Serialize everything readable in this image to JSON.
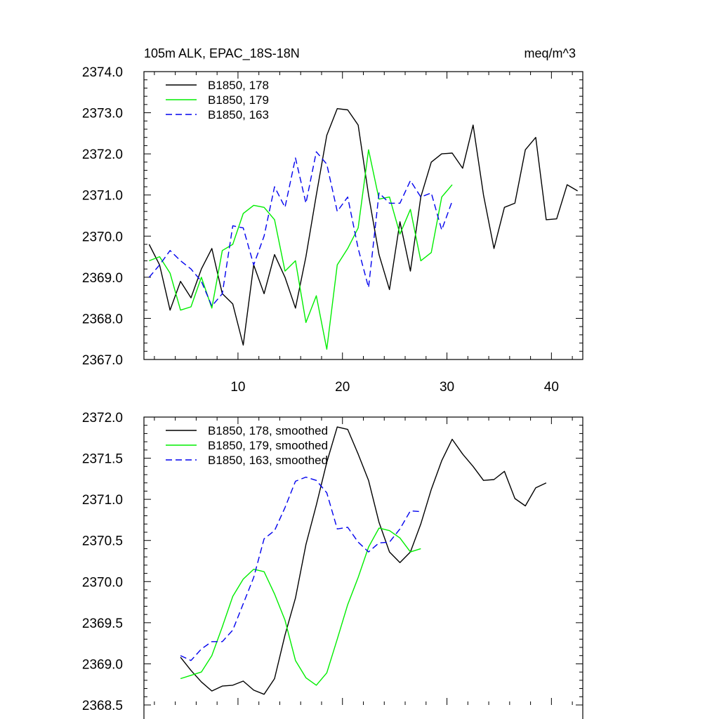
{
  "chart_data": [
    {
      "type": "line",
      "title": "105m ALK, EPAC_18S-18N",
      "units": "meq/m^3",
      "xlim": [
        1,
        43
      ],
      "ylim": [
        2367.0,
        2374.0
      ],
      "xticks": [
        10,
        20,
        30,
        40
      ],
      "xtick_labels": [
        "10",
        "20",
        "30",
        "40"
      ],
      "yticks": [
        2367.0,
        2368.0,
        2369.0,
        2370.0,
        2371.0,
        2372.0,
        2373.0,
        2374.0
      ],
      "ytick_labels": [
        "2367.0",
        "2368.0",
        "2369.0",
        "2370.0",
        "2371.0",
        "2372.0",
        "2373.0",
        "2374.0"
      ],
      "legend_position": "top-left",
      "series": [
        {
          "name": "B1850, 178",
          "color": "#000000",
          "dash": "solid",
          "x": [
            1.5,
            2.5,
            3.5,
            4.5,
            5.5,
            6.5,
            7.5,
            8.5,
            9.5,
            10.5,
            11.5,
            12.5,
            13.5,
            14.5,
            15.5,
            16.5,
            17.5,
            18.5,
            19.5,
            20.5,
            21.5,
            22.5,
            23.5,
            24.5,
            25.5,
            26.5,
            27.5,
            28.5,
            29.5,
            30.5,
            31.5,
            32.5,
            33.5,
            34.5,
            35.5,
            36.5,
            37.5,
            38.5,
            39.5,
            40.5,
            41.5,
            42.5
          ],
          "values": [
            2369.8,
            2369.3,
            2368.2,
            2368.9,
            2368.5,
            2369.2,
            2369.7,
            2368.6,
            2368.35,
            2367.35,
            2369.3,
            2368.6,
            2369.55,
            2369.0,
            2368.25,
            2369.5,
            2371.0,
            2372.45,
            2373.1,
            2373.07,
            2372.7,
            2371.0,
            2369.55,
            2368.7,
            2370.35,
            2369.15,
            2370.95,
            2371.8,
            2372.0,
            2372.02,
            2371.65,
            2372.7,
            2371.0,
            2369.7,
            2370.7,
            2370.8,
            2372.1,
            2372.4,
            2370.4,
            2370.42,
            2371.25,
            2371.1
          ]
        },
        {
          "name": "B1850, 179",
          "color": "#00ee00",
          "dash": "solid",
          "x": [
            1.5,
            2.5,
            3.5,
            4.5,
            5.5,
            6.5,
            7.5,
            8.5,
            9.5,
            10.5,
            11.5,
            12.5,
            13.5,
            14.5,
            15.5,
            16.5,
            17.5,
            18.5,
            19.5,
            20.5,
            21.5,
            22.5,
            23.5,
            24.5,
            25.5,
            26.5,
            27.5,
            28.5,
            29.5,
            30.5
          ],
          "values": [
            2369.4,
            2369.5,
            2369.1,
            2368.2,
            2368.28,
            2369.0,
            2368.25,
            2369.65,
            2369.8,
            2370.55,
            2370.75,
            2370.7,
            2370.4,
            2369.15,
            2369.4,
            2367.9,
            2368.55,
            2367.25,
            2369.3,
            2369.7,
            2370.2,
            2372.1,
            2370.9,
            2370.95,
            2370.05,
            2370.65,
            2369.4,
            2369.6,
            2370.95,
            2371.25
          ]
        },
        {
          "name": "B1850, 163",
          "color": "#0000ee",
          "dash": "dashed",
          "x": [
            1.5,
            2.5,
            3.5,
            4.5,
            5.5,
            6.5,
            7.5,
            8.5,
            9.5,
            10.5,
            11.5,
            12.5,
            13.5,
            14.5,
            15.5,
            16.5,
            17.5,
            18.5,
            19.5,
            20.5,
            21.5,
            22.5,
            23.5,
            24.5,
            25.5,
            26.5,
            27.5,
            28.5,
            29.5,
            30.5
          ],
          "values": [
            2369.0,
            2369.3,
            2369.65,
            2369.4,
            2369.2,
            2368.9,
            2368.3,
            2368.6,
            2370.25,
            2370.2,
            2369.3,
            2370.0,
            2371.2,
            2370.7,
            2371.9,
            2370.8,
            2372.05,
            2371.75,
            2370.6,
            2370.95,
            2369.7,
            2368.75,
            2371.05,
            2370.8,
            2370.8,
            2371.35,
            2370.95,
            2371.05,
            2370.15,
            2370.85
          ]
        }
      ]
    },
    {
      "type": "line",
      "xlim": [
        1,
        43
      ],
      "ylim": [
        2368.5,
        2372.0
      ],
      "xticks": [
        10,
        20,
        30,
        40
      ],
      "yticks": [
        2368.5,
        2369.0,
        2369.5,
        2370.0,
        2370.5,
        2371.0,
        2371.5,
        2372.0
      ],
      "ytick_labels": [
        "2368.5",
        "2369.0",
        "2369.5",
        "2370.0",
        "2370.5",
        "2371.0",
        "2371.5",
        "2372.0"
      ],
      "legend_position": "top-left",
      "series": [
        {
          "name": "B1850, 178, smoothed",
          "color": "#000000",
          "dash": "solid",
          "x": [
            4.5,
            5.5,
            6.5,
            7.5,
            8.5,
            9.5,
            10.5,
            11.5,
            12.5,
            13.5,
            14.5,
            15.5,
            16.5,
            17.5,
            18.5,
            19.5,
            20.5,
            21.5,
            22.5,
            23.5,
            24.5,
            25.5,
            26.5,
            27.5,
            28.5,
            29.5,
            30.5,
            31.5,
            32.5,
            33.5,
            34.5,
            35.5,
            36.5,
            37.5,
            38.5,
            39.5
          ],
          "values": [
            2369.08,
            2368.92,
            2368.78,
            2368.67,
            2368.73,
            2368.74,
            2368.79,
            2368.68,
            2368.63,
            2368.82,
            2369.35,
            2369.8,
            2370.45,
            2370.93,
            2371.45,
            2371.88,
            2371.85,
            2371.55,
            2371.23,
            2370.72,
            2370.36,
            2370.23,
            2370.36,
            2370.7,
            2371.12,
            2371.47,
            2371.73,
            2371.55,
            2371.4,
            2371.23,
            2371.24,
            2371.34,
            2371.01,
            2370.92,
            2371.14,
            2371.2
          ]
        },
        {
          "name": "B1850, 179, smoothed",
          "color": "#00ee00",
          "dash": "solid",
          "x": [
            4.5,
            5.5,
            6.5,
            7.5,
            8.5,
            9.5,
            10.5,
            11.5,
            12.5,
            13.5,
            14.5,
            15.5,
            16.5,
            17.5,
            18.5,
            19.5,
            20.5,
            21.5,
            22.5,
            23.5,
            24.5,
            25.5,
            26.5,
            27.5
          ],
          "values": [
            2368.82,
            2368.86,
            2368.9,
            2369.1,
            2369.45,
            2369.82,
            2370.03,
            2370.15,
            2370.12,
            2369.85,
            2369.53,
            2369.04,
            2368.83,
            2368.74,
            2368.89,
            2369.3,
            2369.72,
            2370.05,
            2370.42,
            2370.65,
            2370.62,
            2370.53,
            2370.36,
            2370.4
          ]
        },
        {
          "name": "B1850, 163, smoothed",
          "color": "#0000ee",
          "dash": "dashed",
          "x": [
            4.5,
            5.5,
            6.5,
            7.5,
            8.5,
            9.5,
            10.5,
            11.5,
            12.5,
            13.5,
            14.5,
            15.5,
            16.5,
            17.5,
            18.5,
            19.5,
            20.5,
            21.5,
            22.5,
            23.5,
            24.5,
            25.5,
            26.5,
            27.5
          ],
          "values": [
            2369.1,
            2369.04,
            2369.18,
            2369.27,
            2369.27,
            2369.41,
            2369.73,
            2370.05,
            2370.52,
            2370.62,
            2370.9,
            2371.22,
            2371.27,
            2371.23,
            2371.08,
            2370.64,
            2370.66,
            2370.48,
            2370.36,
            2370.47,
            2370.48,
            2370.64,
            2370.86,
            2370.85
          ]
        }
      ]
    }
  ]
}
